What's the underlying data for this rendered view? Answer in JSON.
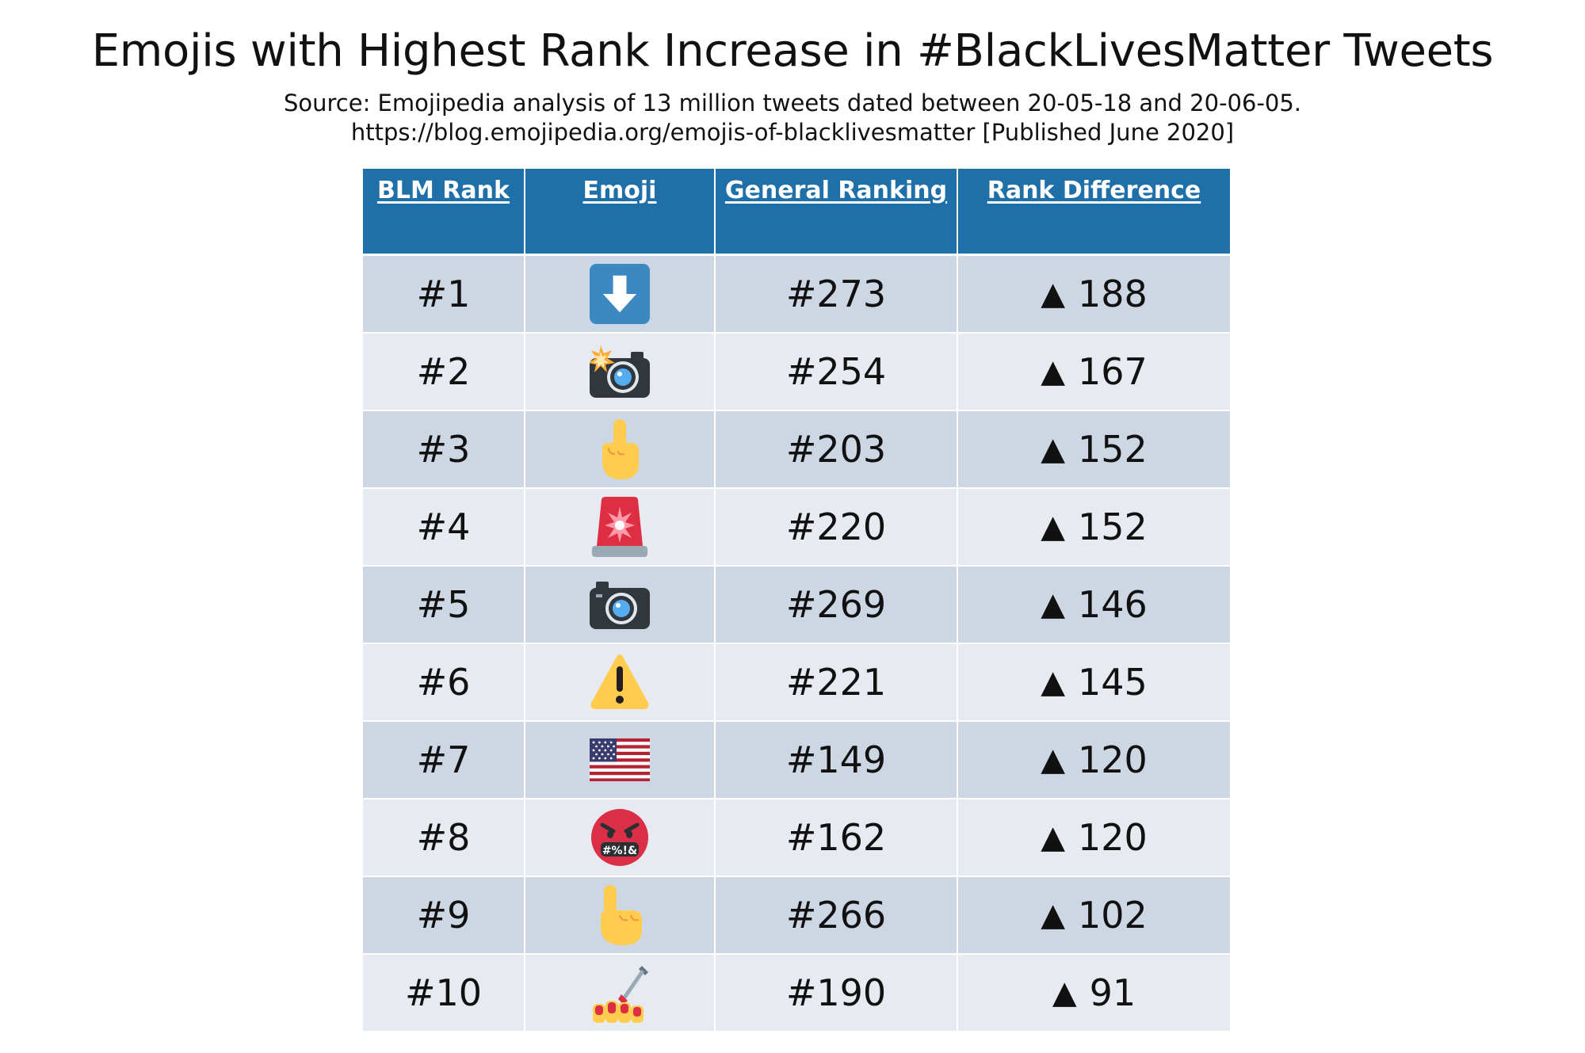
{
  "title": "Emojis with Highest Rank Increase in #BlackLivesMatter Tweets",
  "source_line": "Source: Emojipedia analysis of 13 million tweets dated between 20-05-18 and 20-06-05.",
  "url_line": "https://blog.emojipedia.org/emojis-of-blacklivesmatter [Published June 2020]",
  "table": {
    "headers": [
      "BLM Rank",
      "Emoji",
      "General Ranking",
      "Rank Difference"
    ],
    "arrow_symbol": "▲",
    "rows": [
      {
        "blm_rank": "#1",
        "emoji": "down-arrow-button",
        "general_ranking": "#273",
        "rank_difference": "188"
      },
      {
        "blm_rank": "#2",
        "emoji": "camera-with-flash",
        "general_ranking": "#254",
        "rank_difference": "167"
      },
      {
        "blm_rank": "#3",
        "emoji": "middle-finger",
        "general_ranking": "#203",
        "rank_difference": "152"
      },
      {
        "blm_rank": "#4",
        "emoji": "police-car-light",
        "general_ranking": "#220",
        "rank_difference": "152"
      },
      {
        "blm_rank": "#5",
        "emoji": "camera",
        "general_ranking": "#269",
        "rank_difference": "146"
      },
      {
        "blm_rank": "#6",
        "emoji": "warning",
        "general_ranking": "#221",
        "rank_difference": "145"
      },
      {
        "blm_rank": "#7",
        "emoji": "flag-united-states",
        "general_ranking": "#149",
        "rank_difference": "120"
      },
      {
        "blm_rank": "#8",
        "emoji": "face-with-symbols-on-mouth",
        "general_ranking": "#162",
        "rank_difference": "120"
      },
      {
        "blm_rank": "#9",
        "emoji": "index-pointing-up",
        "general_ranking": "#266",
        "rank_difference": "102"
      },
      {
        "blm_rank": "#10",
        "emoji": "nail-polish",
        "general_ranking": "#190",
        "rank_difference": "91"
      }
    ]
  },
  "emoji_text": {
    "grawlix": "#%!&"
  },
  "colors": {
    "header_bg": "#1f6fa8",
    "row_dark": "#cdd7e4",
    "row_light": "#e8eaf1"
  }
}
